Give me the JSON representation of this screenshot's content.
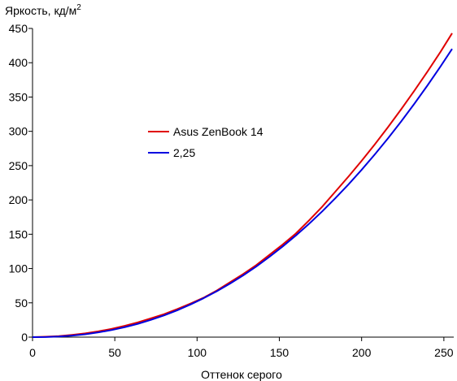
{
  "chart_data": {
    "type": "line",
    "xlabel": "Оттенок серого",
    "ylabel": "Яркость, кд/м",
    "ylabel_sup": "2",
    "xlim": [
      0,
      256
    ],
    "ylim": [
      0,
      450
    ],
    "xticks": [
      "0",
      "50",
      "100",
      "150",
      "200",
      "250"
    ],
    "yticks": [
      "0",
      "50",
      "100",
      "150",
      "200",
      "250",
      "300",
      "350",
      "400",
      "450"
    ],
    "grid": false,
    "legend_position": "center-left",
    "series": [
      {
        "name": "Asus ZenBook 14",
        "color": "#e00000",
        "x": [
          0,
          8,
          16,
          24,
          32,
          40,
          48,
          56,
          64,
          72,
          80,
          88,
          96,
          104,
          112,
          120,
          128,
          136,
          144,
          152,
          160,
          168,
          176,
          184,
          192,
          200,
          208,
          216,
          224,
          232,
          240,
          248,
          255
        ],
        "y": [
          0,
          0.6,
          1.5,
          3.3,
          5.5,
          8.5,
          12,
          16.5,
          21.5,
          27.5,
          33.5,
          41,
          49,
          57.5,
          68,
          80,
          92,
          105,
          120,
          135,
          151,
          170,
          190,
          212,
          234,
          257,
          281,
          306,
          332,
          359,
          387,
          416,
          443
        ]
      },
      {
        "name": "2,25",
        "color": "#0000e0",
        "x": [
          0,
          8,
          16,
          24,
          32,
          40,
          48,
          56,
          64,
          72,
          80,
          88,
          96,
          104,
          112,
          120,
          128,
          136,
          144,
          152,
          160,
          168,
          176,
          184,
          192,
          200,
          208,
          216,
          224,
          232,
          240,
          248,
          255
        ],
        "y": [
          0,
          0.2,
          0.9,
          2.2,
          4.2,
          6.9,
          10.3,
          14.5,
          19.4,
          25.2,
          31.8,
          39.2,
          47.6,
          56.8,
          66.9,
          78,
          90,
          103,
          117.1,
          132.1,
          148.1,
          165.1,
          183.2,
          202.4,
          222.6,
          243.9,
          266.3,
          289.7,
          314.3,
          340,
          366.8,
          394.7,
          420.2
        ]
      }
    ]
  }
}
